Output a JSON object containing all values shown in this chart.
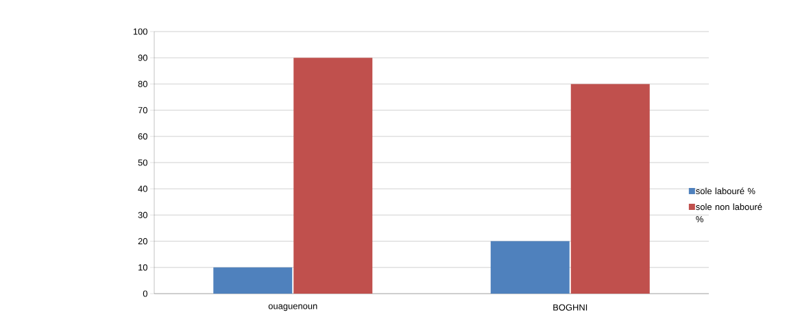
{
  "chart_data": {
    "type": "bar",
    "categories": [
      "ouaguenoun",
      "BOGHNI"
    ],
    "series": [
      {
        "name": "sole labouré %",
        "color": "#4f81bd",
        "values": [
          10,
          20
        ]
      },
      {
        "name": "sole non labouré %",
        "color": "#c0504d",
        "values": [
          90,
          80
        ]
      }
    ],
    "ylim": [
      0,
      100
    ],
    "yticks": [
      0,
      10,
      20,
      30,
      40,
      50,
      60,
      70,
      80,
      90,
      100
    ],
    "grid": "y",
    "legend": "right"
  }
}
